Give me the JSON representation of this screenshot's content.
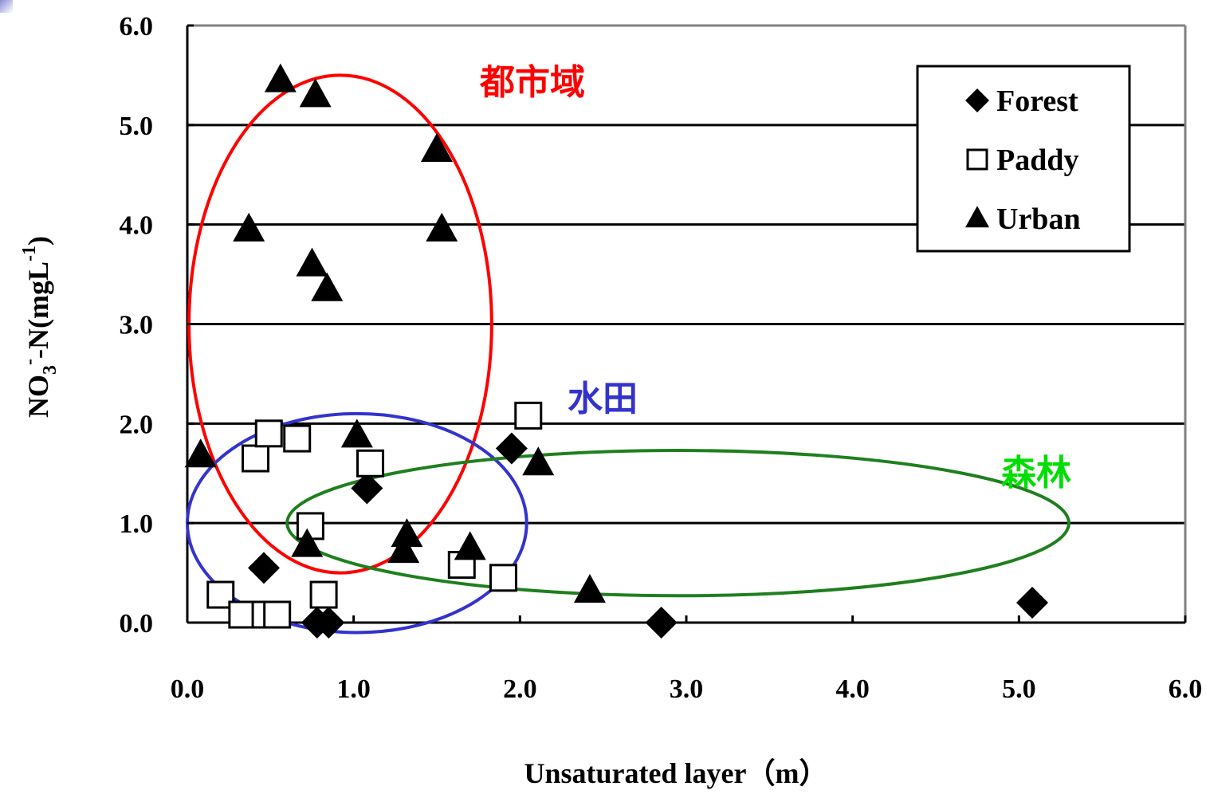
{
  "chart_data": {
    "type": "scatter",
    "xlabel": "Unsaturated layer（m）",
    "ylabel_parts": {
      "main": "NO",
      "sub": "3",
      "sup": "-",
      "mid": "-N(mgL",
      "sup2": "-1",
      "end": ")"
    },
    "xlim": [
      0,
      6
    ],
    "ylim": [
      0,
      6
    ],
    "x_ticks": [
      "0.0",
      "1.0",
      "2.0",
      "3.0",
      "4.0",
      "5.0",
      "6.0"
    ],
    "y_ticks": [
      "0.0",
      "1.0",
      "2.0",
      "3.0",
      "4.0",
      "5.0",
      "6.0"
    ],
    "grid": "horizontal",
    "legend_position": "top-right",
    "series": [
      {
        "name": "Forest",
        "marker": "diamond-filled",
        "color": "#000000",
        "points": [
          [
            0.46,
            0.55
          ],
          [
            1.08,
            1.35
          ],
          [
            1.95,
            1.75
          ],
          [
            0.78,
            0.0
          ],
          [
            0.85,
            0.0
          ],
          [
            2.85,
            0.0
          ],
          [
            5.08,
            0.2
          ]
        ]
      },
      {
        "name": "Paddy",
        "marker": "square-open",
        "color": "#000000",
        "points": [
          [
            0.2,
            0.28
          ],
          [
            0.33,
            0.08
          ],
          [
            0.47,
            0.08
          ],
          [
            0.54,
            0.08
          ],
          [
            0.41,
            1.65
          ],
          [
            0.49,
            1.9
          ],
          [
            0.66,
            1.85
          ],
          [
            0.74,
            0.97
          ],
          [
            0.82,
            0.28
          ],
          [
            1.1,
            1.6
          ],
          [
            1.65,
            0.58
          ],
          [
            1.9,
            0.45
          ],
          [
            2.05,
            2.08
          ]
        ]
      },
      {
        "name": "Urban",
        "marker": "triangle-filled",
        "color": "#000000",
        "points": [
          [
            0.56,
            5.45
          ],
          [
            0.77,
            5.3
          ],
          [
            1.5,
            4.75
          ],
          [
            1.53,
            3.95
          ],
          [
            0.37,
            3.95
          ],
          [
            0.75,
            3.6
          ],
          [
            0.84,
            3.35
          ],
          [
            0.08,
            1.68
          ],
          [
            1.02,
            1.88
          ],
          [
            2.11,
            1.6
          ],
          [
            0.72,
            0.78
          ],
          [
            1.3,
            0.72
          ],
          [
            1.32,
            0.88
          ],
          [
            1.7,
            0.75
          ],
          [
            2.42,
            0.32
          ]
        ]
      }
    ],
    "annotations": [
      {
        "text": "都市域",
        "color": "#ff0000",
        "ellipse": {
          "cx": 0.92,
          "cy": 3.0,
          "rx": 0.91,
          "ry": 2.5
        }
      },
      {
        "text": "水田",
        "color": "#3333cc",
        "ellipse": {
          "cx": 1.02,
          "cy": 1.0,
          "rx": 1.02,
          "ry": 1.1
        }
      },
      {
        "text": "森林",
        "color": "#00dd00",
        "ellipse_color": "#1f7f1f",
        "ellipse": {
          "cx": 2.95,
          "cy": 1.0,
          "rx": 2.35,
          "ry": 0.73
        }
      }
    ]
  }
}
